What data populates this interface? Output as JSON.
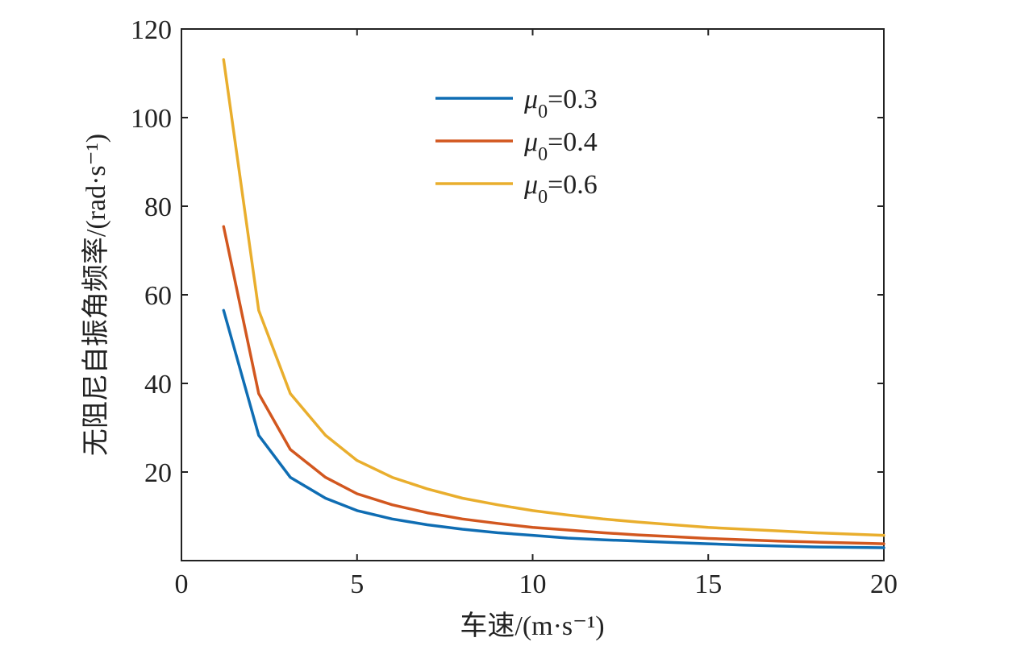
{
  "chart_data": {
    "type": "line",
    "xlabel": "车速/(m·s⁻¹)",
    "ylabel": "无阻尼自振角频率/(rad·s⁻¹)",
    "xlim": [
      0,
      20
    ],
    "ylim": [
      0,
      120
    ],
    "xticks": [
      0,
      5,
      10,
      15,
      20
    ],
    "yticks": [
      20,
      40,
      60,
      80,
      100,
      120
    ],
    "grid": false,
    "legend_position": "top-center",
    "x": [
      1.2,
      2.2,
      3.1,
      4.1,
      5,
      6,
      7,
      8,
      9,
      10,
      11,
      12,
      13,
      14,
      15,
      16,
      17,
      18,
      19,
      20
    ],
    "series": [
      {
        "name": "μ0=0.3",
        "color": "#0f6db3",
        "values": [
          56.5,
          28.3,
          18.8,
          14.1,
          11.3,
          9.4,
          8.1,
          7.1,
          6.3,
          5.7,
          5.1,
          4.7,
          4.4,
          4.1,
          3.8,
          3.5,
          3.3,
          3.1,
          3.0,
          2.9
        ]
      },
      {
        "name": "μ0=0.4",
        "color": "#d2571f",
        "values": [
          75.4,
          37.7,
          25.1,
          18.8,
          15.1,
          12.6,
          10.8,
          9.4,
          8.4,
          7.5,
          6.9,
          6.3,
          5.8,
          5.4,
          5.0,
          4.7,
          4.4,
          4.2,
          4.0,
          3.8
        ]
      },
      {
        "name": "μ0=0.6",
        "color": "#e9ae2d",
        "values": [
          113.1,
          56.5,
          37.7,
          28.3,
          22.6,
          18.8,
          16.2,
          14.1,
          12.6,
          11.3,
          10.3,
          9.4,
          8.7,
          8.1,
          7.5,
          7.1,
          6.7,
          6.3,
          6.0,
          5.7
        ]
      }
    ],
    "legend": [
      {
        "symbol": "μ",
        "subscript": "0",
        "value": "=0.3"
      },
      {
        "symbol": "μ",
        "subscript": "0",
        "value": "=0.4"
      },
      {
        "symbol": "μ",
        "subscript": "0",
        "value": "=0.6"
      }
    ]
  }
}
